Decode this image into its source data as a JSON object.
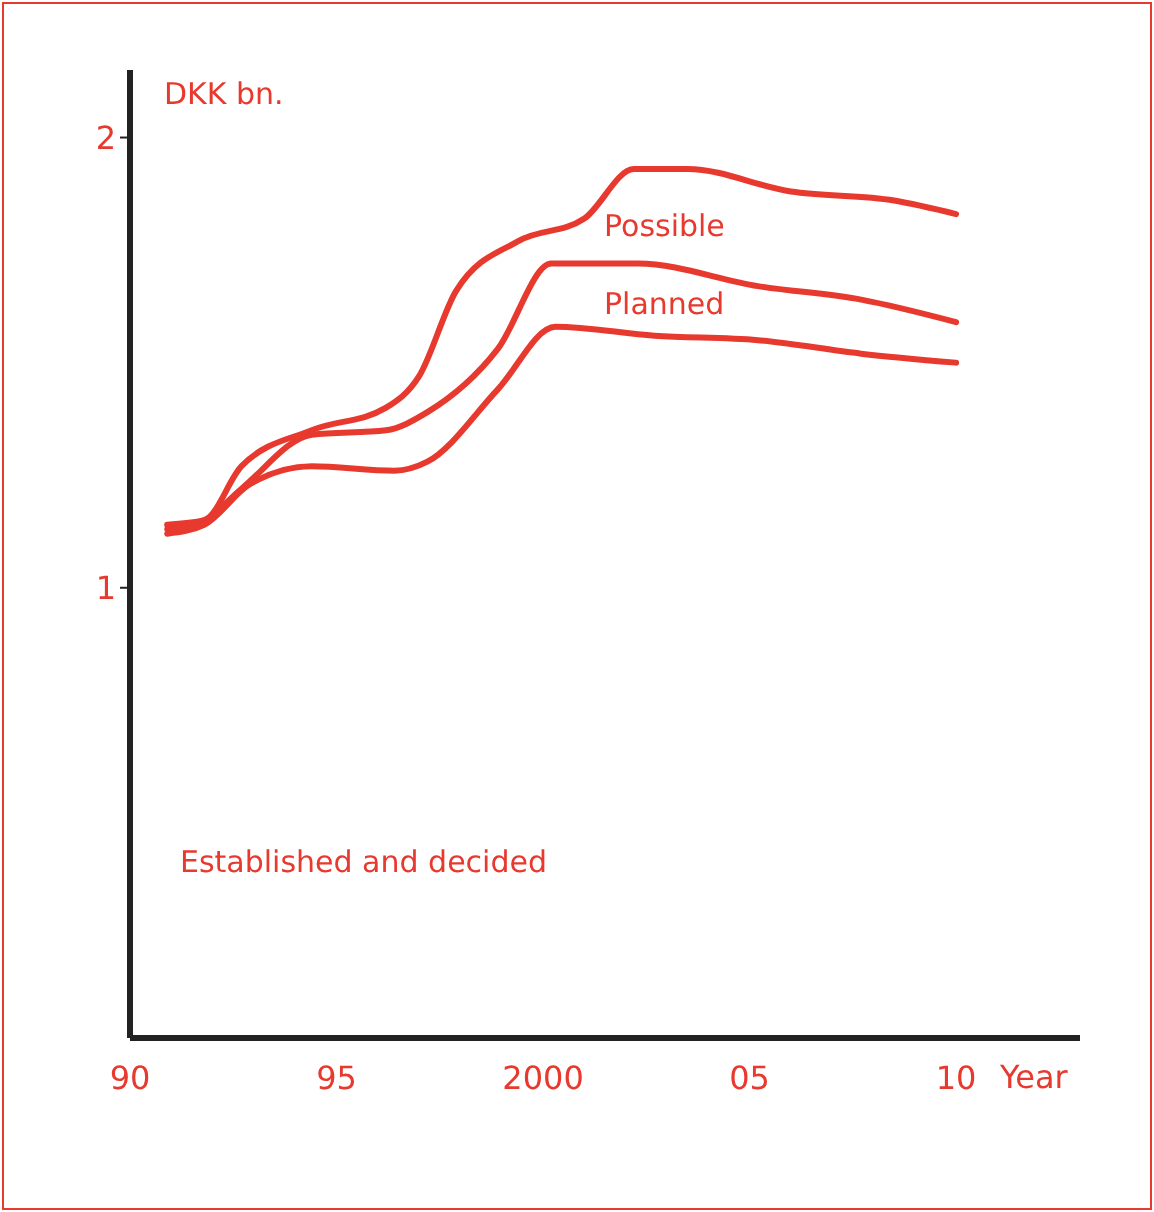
{
  "chart_data": {
    "type": "line",
    "xlabel": "Year",
    "ylabel": "DKK bn.",
    "xlim": [
      1990,
      2013
    ],
    "xticks": [
      {
        "value": 1990,
        "label": "90"
      },
      {
        "value": 1995,
        "label": "95"
      },
      {
        "value": 2000,
        "label": "2000"
      },
      {
        "value": 2005,
        "label": "05"
      },
      {
        "value": 2010,
        "label": "10"
      }
    ],
    "ylim": [
      0,
      2.15
    ],
    "yticks": [
      1,
      2
    ],
    "annotations": [
      "Established and decided"
    ],
    "grid": false,
    "legend": false,
    "marker": "none",
    "line_style": "solid",
    "series": [
      {
        "name": "Possible",
        "color": "#e8392f",
        "x": [
          1990.9,
          1991.8,
          1992.7,
          1994.4,
          1996.2,
          1997,
          1997.9,
          1999.4,
          2001,
          2002.2,
          2003.5,
          2006,
          2008.5,
          2010
        ],
        "values": [
          1.14,
          1.15,
          1.27,
          1.35,
          1.4,
          1.47,
          1.66,
          1.77,
          1.82,
          1.93,
          1.93,
          1.88,
          1.86,
          1.83
        ]
      },
      {
        "name": "Planned",
        "color": "#e8392f",
        "x": [
          1990.9,
          1991.8,
          1992.7,
          1994.4,
          1996.2,
          1997.2,
          1998.9,
          2000.2,
          2002.3,
          2005.2,
          2007.7,
          2010
        ],
        "values": [
          1.13,
          1.15,
          1.22,
          1.34,
          1.35,
          1.39,
          1.53,
          1.72,
          1.72,
          1.67,
          1.64,
          1.59
        ]
      },
      {
        "color": "#e8392f",
        "x": [
          1990.9,
          1991.8,
          1992.9,
          1994.4,
          1996.4,
          1997.2,
          1998.9,
          2000.3,
          2002.7,
          2005.2,
          2007.7,
          2010
        ],
        "values": [
          1.12,
          1.14,
          1.23,
          1.27,
          1.26,
          1.28,
          1.44,
          1.58,
          1.56,
          1.55,
          1.52,
          1.5
        ]
      }
    ]
  }
}
